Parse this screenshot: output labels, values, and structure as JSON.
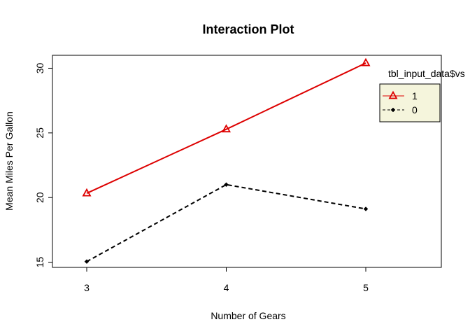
{
  "chart_data": {
    "type": "line",
    "title": "Interaction Plot",
    "xlabel": "Number of Gears",
    "ylabel": "Mean Miles Per Gallon",
    "categories": [
      "3",
      "4",
      "5"
    ],
    "ylim": [
      14.6,
      31.0
    ],
    "yticks": [
      15,
      20,
      25,
      30
    ],
    "grid": false,
    "legend": {
      "title": "tbl_input_data$vs",
      "placement": "right",
      "background": "#f5f5dc"
    },
    "series": [
      {
        "name": "1",
        "values": [
          20.33,
          25.28,
          30.4
        ],
        "color": "#dd0000",
        "marker": "triangle",
        "dash": "solid"
      },
      {
        "name": "0",
        "values": [
          15.05,
          21.0,
          19.12
        ],
        "color": "#000000",
        "marker": "diamond",
        "dash": "dashed"
      }
    ]
  }
}
